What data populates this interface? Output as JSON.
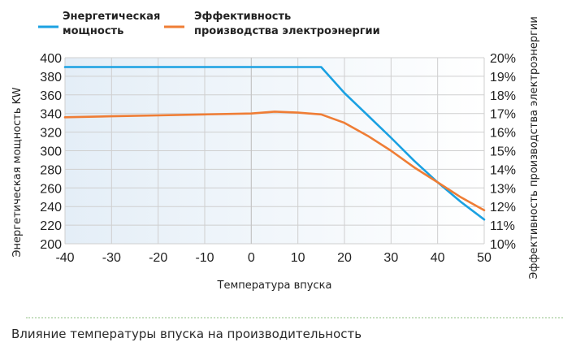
{
  "chart_data": {
    "type": "line",
    "x": [
      -40,
      -30,
      -20,
      -10,
      0,
      5,
      10,
      15,
      20,
      25,
      30,
      35,
      40,
      45,
      50
    ],
    "series": [
      {
        "name": "Энергетическая мощность",
        "axis": "left",
        "color": "#1ba1e2",
        "x": [
          -40,
          15,
          20,
          25,
          30,
          35,
          40,
          45,
          50
        ],
        "values": [
          390,
          390,
          362,
          338,
          314,
          289,
          266,
          245,
          226
        ]
      },
      {
        "name": "Эффективность производства электроэнергии",
        "axis": "right",
        "color": "#ef7d35",
        "x": [
          -40,
          -30,
          -20,
          -10,
          0,
          5,
          10,
          15,
          20,
          25,
          30,
          35,
          40,
          45,
          50
        ],
        "values": [
          16.8,
          16.85,
          16.9,
          16.95,
          17.0,
          17.1,
          17.05,
          16.95,
          16.5,
          15.8,
          15.0,
          14.1,
          13.3,
          12.5,
          11.8
        ]
      }
    ],
    "xlabel": "Температура впуска",
    "ylabel_left": "Энергетическая мощность KW",
    "ylabel_right": "Эффективность производства электроэнергии",
    "xlim": [
      -40,
      50
    ],
    "ylim_left": [
      200,
      400
    ],
    "ylim_right": [
      10,
      20
    ],
    "x_ticks": [
      "-40",
      "-30",
      "-20",
      "-10",
      "0",
      "10",
      "20",
      "30",
      "40",
      "50"
    ],
    "y_left_ticks": [
      "400",
      "380",
      "360",
      "340",
      "320",
      "300",
      "280",
      "260",
      "240",
      "220",
      "200"
    ],
    "y_right_ticks": [
      "20%",
      "19%",
      "18%",
      "17%",
      "16%",
      "15%",
      "14%",
      "13%",
      "12%",
      "11%",
      "10%"
    ],
    "legend": [
      "Энергетическая мощность",
      "Эффективность производства электроэнергии"
    ],
    "legend_lines": [
      [
        "Энергетическая",
        "мощность"
      ],
      [
        "Эффективность",
        "производства электроэнергии"
      ]
    ],
    "legend_position": "top",
    "grid": true,
    "background_gradient": [
      "#e4eef7",
      "#ffffff"
    ]
  },
  "caption": "Влияние температуры впуска на производительность"
}
